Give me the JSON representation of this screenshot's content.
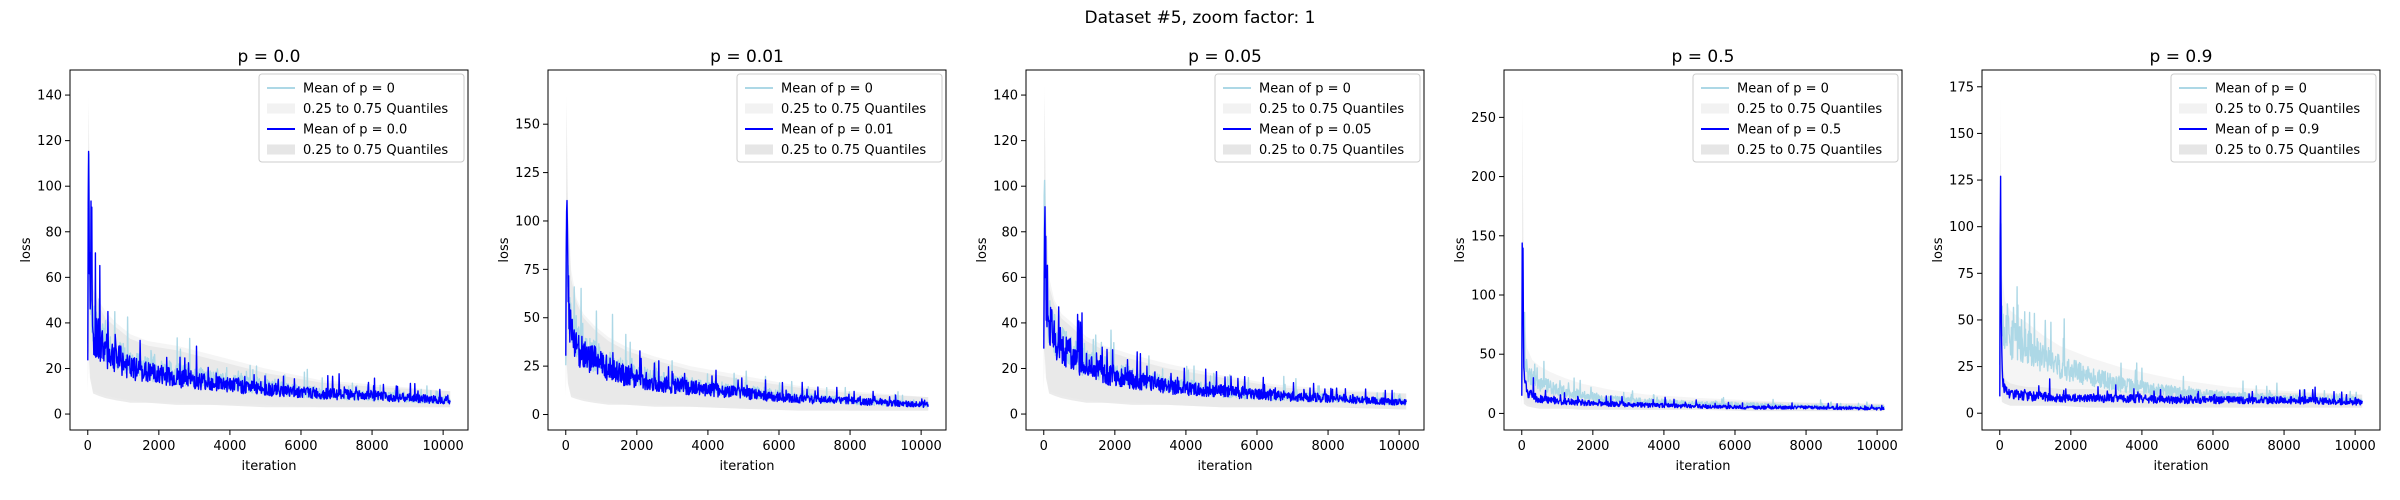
{
  "figure": {
    "title": "Dataset #5, zoom factor: 1"
  },
  "colors": {
    "baseline_mean": "#add8e6",
    "baseline_band": "#f2f2f2",
    "run_mean": "#0000ff",
    "run_band": "#e6e6e6"
  },
  "chart_data": [
    {
      "type": "line",
      "title": "p = 0.0",
      "xlabel": "iteration",
      "ylabel": "loss",
      "xlim": [
        -500,
        10700
      ],
      "ylim": [
        -7,
        151
      ],
      "xticks": [
        0,
        2000,
        4000,
        6000,
        8000,
        10000
      ],
      "yticks": [
        0,
        20,
        40,
        60,
        80,
        100,
        120,
        140
      ],
      "legend_placement": "top-right",
      "legend": [
        "Mean of p = 0",
        "0.25 to 0.75 Quantiles",
        "Mean of p = 0.0",
        "0.25 to 0.75 Quantiles"
      ],
      "series": [
        {
          "name": "Mean of p = 0",
          "kind": "mean",
          "x": [
            0,
            20,
            60,
            150,
            300,
            500,
            800,
            1200,
            1700,
            2500,
            3500,
            5000,
            6500,
            8000,
            10200
          ],
          "y": [
            30,
            112,
            62,
            38,
            35,
            30,
            27,
            22,
            20,
            18,
            15,
            12,
            9,
            8,
            6
          ]
        },
        {
          "name": "0.25 to 0.75 Quantiles",
          "kind": "band",
          "x": [
            0,
            20,
            60,
            150,
            300,
            500,
            800,
            1200,
            1700,
            2500,
            3500,
            5000,
            6500,
            8000,
            10200
          ],
          "low": [
            12,
            30,
            18,
            10,
            9,
            8,
            7,
            6,
            5,
            5,
            4,
            4,
            3,
            3,
            3
          ],
          "high": [
            60,
            140,
            95,
            60,
            50,
            45,
            40,
            35,
            32,
            30,
            26,
            20,
            15,
            13,
            10
          ]
        },
        {
          "name": "Mean of p = 0.0",
          "kind": "mean",
          "x": [
            0,
            20,
            60,
            150,
            300,
            500,
            800,
            1200,
            1700,
            2500,
            3500,
            5000,
            6500,
            8000,
            10200
          ],
          "y": [
            25,
            112,
            60,
            35,
            33,
            28,
            25,
            20,
            18,
            16,
            14,
            11,
            9,
            8,
            6
          ]
        },
        {
          "name": "0.25 to 0.75 Quantiles",
          "kind": "band",
          "x": [
            0,
            20,
            60,
            150,
            300,
            500,
            800,
            1200,
            1700,
            2500,
            3500,
            5000,
            6500,
            8000,
            10200
          ],
          "low": [
            10,
            28,
            16,
            9,
            8,
            7,
            6,
            5,
            5,
            4,
            4,
            3,
            3,
            3,
            3
          ],
          "high": [
            55,
            135,
            90,
            55,
            48,
            42,
            38,
            33,
            30,
            28,
            24,
            18,
            14,
            12,
            10
          ]
        }
      ]
    },
    {
      "type": "line",
      "title": "p = 0.01",
      "xlabel": "iteration",
      "ylabel": "loss",
      "xlim": [
        -500,
        10700
      ],
      "ylim": [
        -8,
        178
      ],
      "xticks": [
        0,
        2000,
        4000,
        6000,
        8000,
        10000
      ],
      "yticks": [
        0,
        25,
        50,
        75,
        100,
        125,
        150
      ],
      "legend_placement": "top-right",
      "legend": [
        "Mean of p = 0",
        "0.25 to 0.75 Quantiles",
        "Mean of p = 0.01",
        "0.25 to 0.75 Quantiles"
      ],
      "series": [
        {
          "name": "Mean of p = 0",
          "kind": "mean",
          "x": [
            0,
            20,
            60,
            150,
            300,
            500,
            800,
            1200,
            1700,
            2500,
            3500,
            5000,
            6500,
            8000,
            10200
          ],
          "y": [
            30,
            107,
            65,
            45,
            38,
            33,
            30,
            26,
            22,
            18,
            15,
            12,
            9,
            7,
            5
          ]
        },
        {
          "name": "0.25 to 0.75 Quantiles",
          "kind": "band",
          "x": [
            0,
            20,
            60,
            150,
            300,
            500,
            800,
            1200,
            1700,
            2500,
            3500,
            5000,
            6500,
            8000,
            10200
          ],
          "low": [
            12,
            30,
            18,
            10,
            9,
            8,
            7,
            6,
            5,
            5,
            4,
            3,
            3,
            2,
            2
          ],
          "high": [
            70,
            165,
            110,
            75,
            60,
            52,
            46,
            40,
            35,
            30,
            25,
            20,
            15,
            12,
            9
          ]
        },
        {
          "name": "Mean of p = 0.01",
          "kind": "mean",
          "x": [
            0,
            20,
            60,
            150,
            300,
            500,
            800,
            1200,
            1700,
            2500,
            3500,
            5000,
            6500,
            8000,
            10200
          ],
          "y": [
            28,
            107,
            62,
            42,
            36,
            31,
            28,
            24,
            20,
            16,
            14,
            11,
            8,
            7,
            5
          ]
        },
        {
          "name": "0.25 to 0.75 Quantiles",
          "kind": "band",
          "x": [
            0,
            20,
            60,
            150,
            300,
            500,
            800,
            1200,
            1700,
            2500,
            3500,
            5000,
            6500,
            8000,
            10200
          ],
          "low": [
            10,
            28,
            16,
            9,
            8,
            7,
            6,
            5,
            5,
            4,
            4,
            3,
            2,
            2,
            2
          ],
          "high": [
            65,
            160,
            105,
            70,
            58,
            50,
            44,
            38,
            33,
            28,
            23,
            18,
            14,
            11,
            9
          ]
        }
      ]
    },
    {
      "type": "line",
      "title": "p = 0.05",
      "xlabel": "iteration",
      "ylabel": "loss",
      "xlim": [
        -500,
        10700
      ],
      "ylim": [
        -7,
        151
      ],
      "xticks": [
        0,
        2000,
        4000,
        6000,
        8000,
        10000
      ],
      "yticks": [
        0,
        20,
        40,
        60,
        80,
        100,
        120,
        140
      ],
      "legend_placement": "top-right",
      "legend": [
        "Mean of p = 0",
        "0.25 to 0.75 Quantiles",
        "Mean of p = 0.05",
        "0.25 to 0.75 Quantiles"
      ],
      "series": [
        {
          "name": "Mean of p = 0",
          "kind": "mean",
          "x": [
            0,
            20,
            60,
            150,
            300,
            500,
            800,
            1200,
            1700,
            2500,
            3500,
            5000,
            6500,
            8000,
            10200
          ],
          "y": [
            30,
            112,
            60,
            40,
            35,
            30,
            27,
            22,
            20,
            16,
            13,
            10,
            8,
            7,
            5
          ]
        },
        {
          "name": "0.25 to 0.75 Quantiles",
          "kind": "band",
          "x": [
            0,
            20,
            60,
            150,
            300,
            500,
            800,
            1200,
            1700,
            2500,
            3500,
            5000,
            6500,
            8000,
            10200
          ],
          "low": [
            12,
            30,
            18,
            10,
            9,
            8,
            7,
            6,
            5,
            5,
            4,
            3,
            3,
            3,
            2
          ],
          "high": [
            60,
            145,
            92,
            60,
            50,
            44,
            40,
            34,
            30,
            26,
            22,
            17,
            13,
            11,
            9
          ]
        },
        {
          "name": "Mean of p = 0.05",
          "kind": "mean",
          "x": [
            0,
            20,
            60,
            150,
            300,
            500,
            800,
            1200,
            1700,
            2500,
            3500,
            5000,
            6500,
            8000,
            10200
          ],
          "y": [
            26,
            107,
            58,
            38,
            34,
            29,
            26,
            21,
            18,
            15,
            12,
            10,
            8,
            7,
            5
          ]
        },
        {
          "name": "0.25 to 0.75 Quantiles",
          "kind": "band",
          "x": [
            0,
            20,
            60,
            150,
            300,
            500,
            800,
            1200,
            1700,
            2500,
            3500,
            5000,
            6500,
            8000,
            10200
          ],
          "low": [
            10,
            28,
            16,
            9,
            8,
            7,
            6,
            5,
            5,
            4,
            4,
            3,
            3,
            3,
            2
          ],
          "high": [
            55,
            140,
            88,
            56,
            48,
            42,
            38,
            32,
            28,
            24,
            20,
            16,
            12,
            10,
            9
          ]
        }
      ]
    },
    {
      "type": "line",
      "title": "p = 0.5",
      "xlabel": "iteration",
      "ylabel": "loss",
      "xlim": [
        -500,
        10700
      ],
      "ylim": [
        -14,
        290
      ],
      "xticks": [
        0,
        2000,
        4000,
        6000,
        8000,
        10000
      ],
      "yticks": [
        0,
        50,
        100,
        150,
        200,
        250
      ],
      "legend_placement": "top-right",
      "legend": [
        "Mean of p = 0",
        "0.25 to 0.75 Quantiles",
        "Mean of p = 0.5",
        "0.25 to 0.75 Quantiles"
      ],
      "series": [
        {
          "name": "Mean of p = 0",
          "kind": "mean",
          "x": [
            0,
            20,
            60,
            150,
            300,
            500,
            800,
            1200,
            1700,
            2500,
            3500,
            5000,
            6500,
            8000,
            10200
          ],
          "y": [
            30,
            110,
            50,
            35,
            30,
            25,
            22,
            18,
            15,
            12,
            10,
            8,
            7,
            6,
            5
          ]
        },
        {
          "name": "0.25 to 0.75 Quantiles",
          "kind": "band",
          "x": [
            0,
            20,
            60,
            150,
            300,
            500,
            800,
            1200,
            1700,
            2500,
            3500,
            5000,
            6500,
            8000,
            10200
          ],
          "low": [
            10,
            20,
            12,
            8,
            7,
            6,
            5,
            5,
            4,
            4,
            3,
            3,
            3,
            2,
            2
          ],
          "high": [
            60,
            270,
            85,
            55,
            45,
            40,
            35,
            30,
            25,
            20,
            16,
            13,
            11,
            9,
            8
          ]
        },
        {
          "name": "Mean of p = 0.5",
          "kind": "mean",
          "x": [
            0,
            20,
            60,
            150,
            300,
            500,
            800,
            1200,
            1700,
            2500,
            3500,
            5000,
            6500,
            8000,
            10200
          ],
          "y": [
            15,
            168,
            30,
            18,
            15,
            12,
            11,
            10,
            9,
            8,
            7,
            6,
            5,
            5,
            4
          ]
        },
        {
          "name": "0.25 to 0.75 Quantiles",
          "kind": "band",
          "x": [
            0,
            20,
            60,
            150,
            300,
            500,
            800,
            1200,
            1700,
            2500,
            3500,
            5000,
            6500,
            8000,
            10200
          ],
          "low": [
            5,
            30,
            8,
            6,
            5,
            4,
            4,
            4,
            3,
            3,
            3,
            3,
            2,
            2,
            2
          ],
          "high": [
            35,
            250,
            60,
            32,
            26,
            22,
            20,
            18,
            16,
            14,
            12,
            11,
            10,
            9,
            8
          ]
        }
      ]
    },
    {
      "type": "line",
      "title": "p = 0.9",
      "xlabel": "iteration",
      "ylabel": "loss",
      "xlim": [
        -500,
        10700
      ],
      "ylim": [
        -9,
        184
      ],
      "xticks": [
        0,
        2000,
        4000,
        6000,
        8000,
        10000
      ],
      "yticks": [
        0,
        25,
        50,
        75,
        100,
        125,
        150,
        175
      ],
      "legend_placement": "top-right",
      "legend": [
        "Mean of p = 0",
        "0.25 to 0.75 Quantiles",
        "Mean of p = 0.9",
        "0.25 to 0.75 Quantiles"
      ],
      "series": [
        {
          "name": "Mean of p = 0",
          "kind": "mean",
          "x": [
            0,
            20,
            60,
            150,
            300,
            500,
            800,
            1200,
            1700,
            2500,
            3500,
            5000,
            6500,
            8000,
            10200
          ],
          "y": [
            30,
            110,
            55,
            45,
            40,
            38,
            35,
            30,
            25,
            20,
            15,
            11,
            9,
            8,
            7
          ]
        },
        {
          "name": "0.25 to 0.75 Quantiles",
          "kind": "band",
          "x": [
            0,
            20,
            60,
            150,
            300,
            500,
            800,
            1200,
            1700,
            2500,
            3500,
            5000,
            6500,
            8000,
            10200
          ],
          "low": [
            10,
            25,
            15,
            10,
            9,
            8,
            7,
            6,
            5,
            5,
            4,
            4,
            3,
            3,
            3
          ],
          "high": [
            60,
            170,
            75,
            60,
            55,
            52,
            48,
            42,
            36,
            30,
            24,
            18,
            14,
            12,
            10
          ]
        },
        {
          "name": "Mean of p = 0.9",
          "kind": "mean",
          "x": [
            0,
            20,
            60,
            150,
            300,
            500,
            800,
            1200,
            1700,
            2500,
            3500,
            5000,
            6500,
            8000,
            10200
          ],
          "y": [
            12,
            124,
            20,
            12,
            10,
            10,
            9,
            9,
            8,
            8,
            8,
            7,
            7,
            7,
            6
          ]
        },
        {
          "name": "0.25 to 0.75 Quantiles",
          "kind": "band",
          "x": [
            0,
            20,
            60,
            150,
            300,
            500,
            800,
            1200,
            1700,
            2500,
            3500,
            5000,
            6500,
            8000,
            10200
          ],
          "low": [
            5,
            20,
            6,
            5,
            4,
            4,
            4,
            4,
            4,
            3,
            3,
            3,
            3,
            3,
            3
          ],
          "high": [
            25,
            150,
            30,
            18,
            16,
            15,
            14,
            14,
            13,
            13,
            12,
            12,
            11,
            11,
            10
          ]
        }
      ]
    }
  ]
}
